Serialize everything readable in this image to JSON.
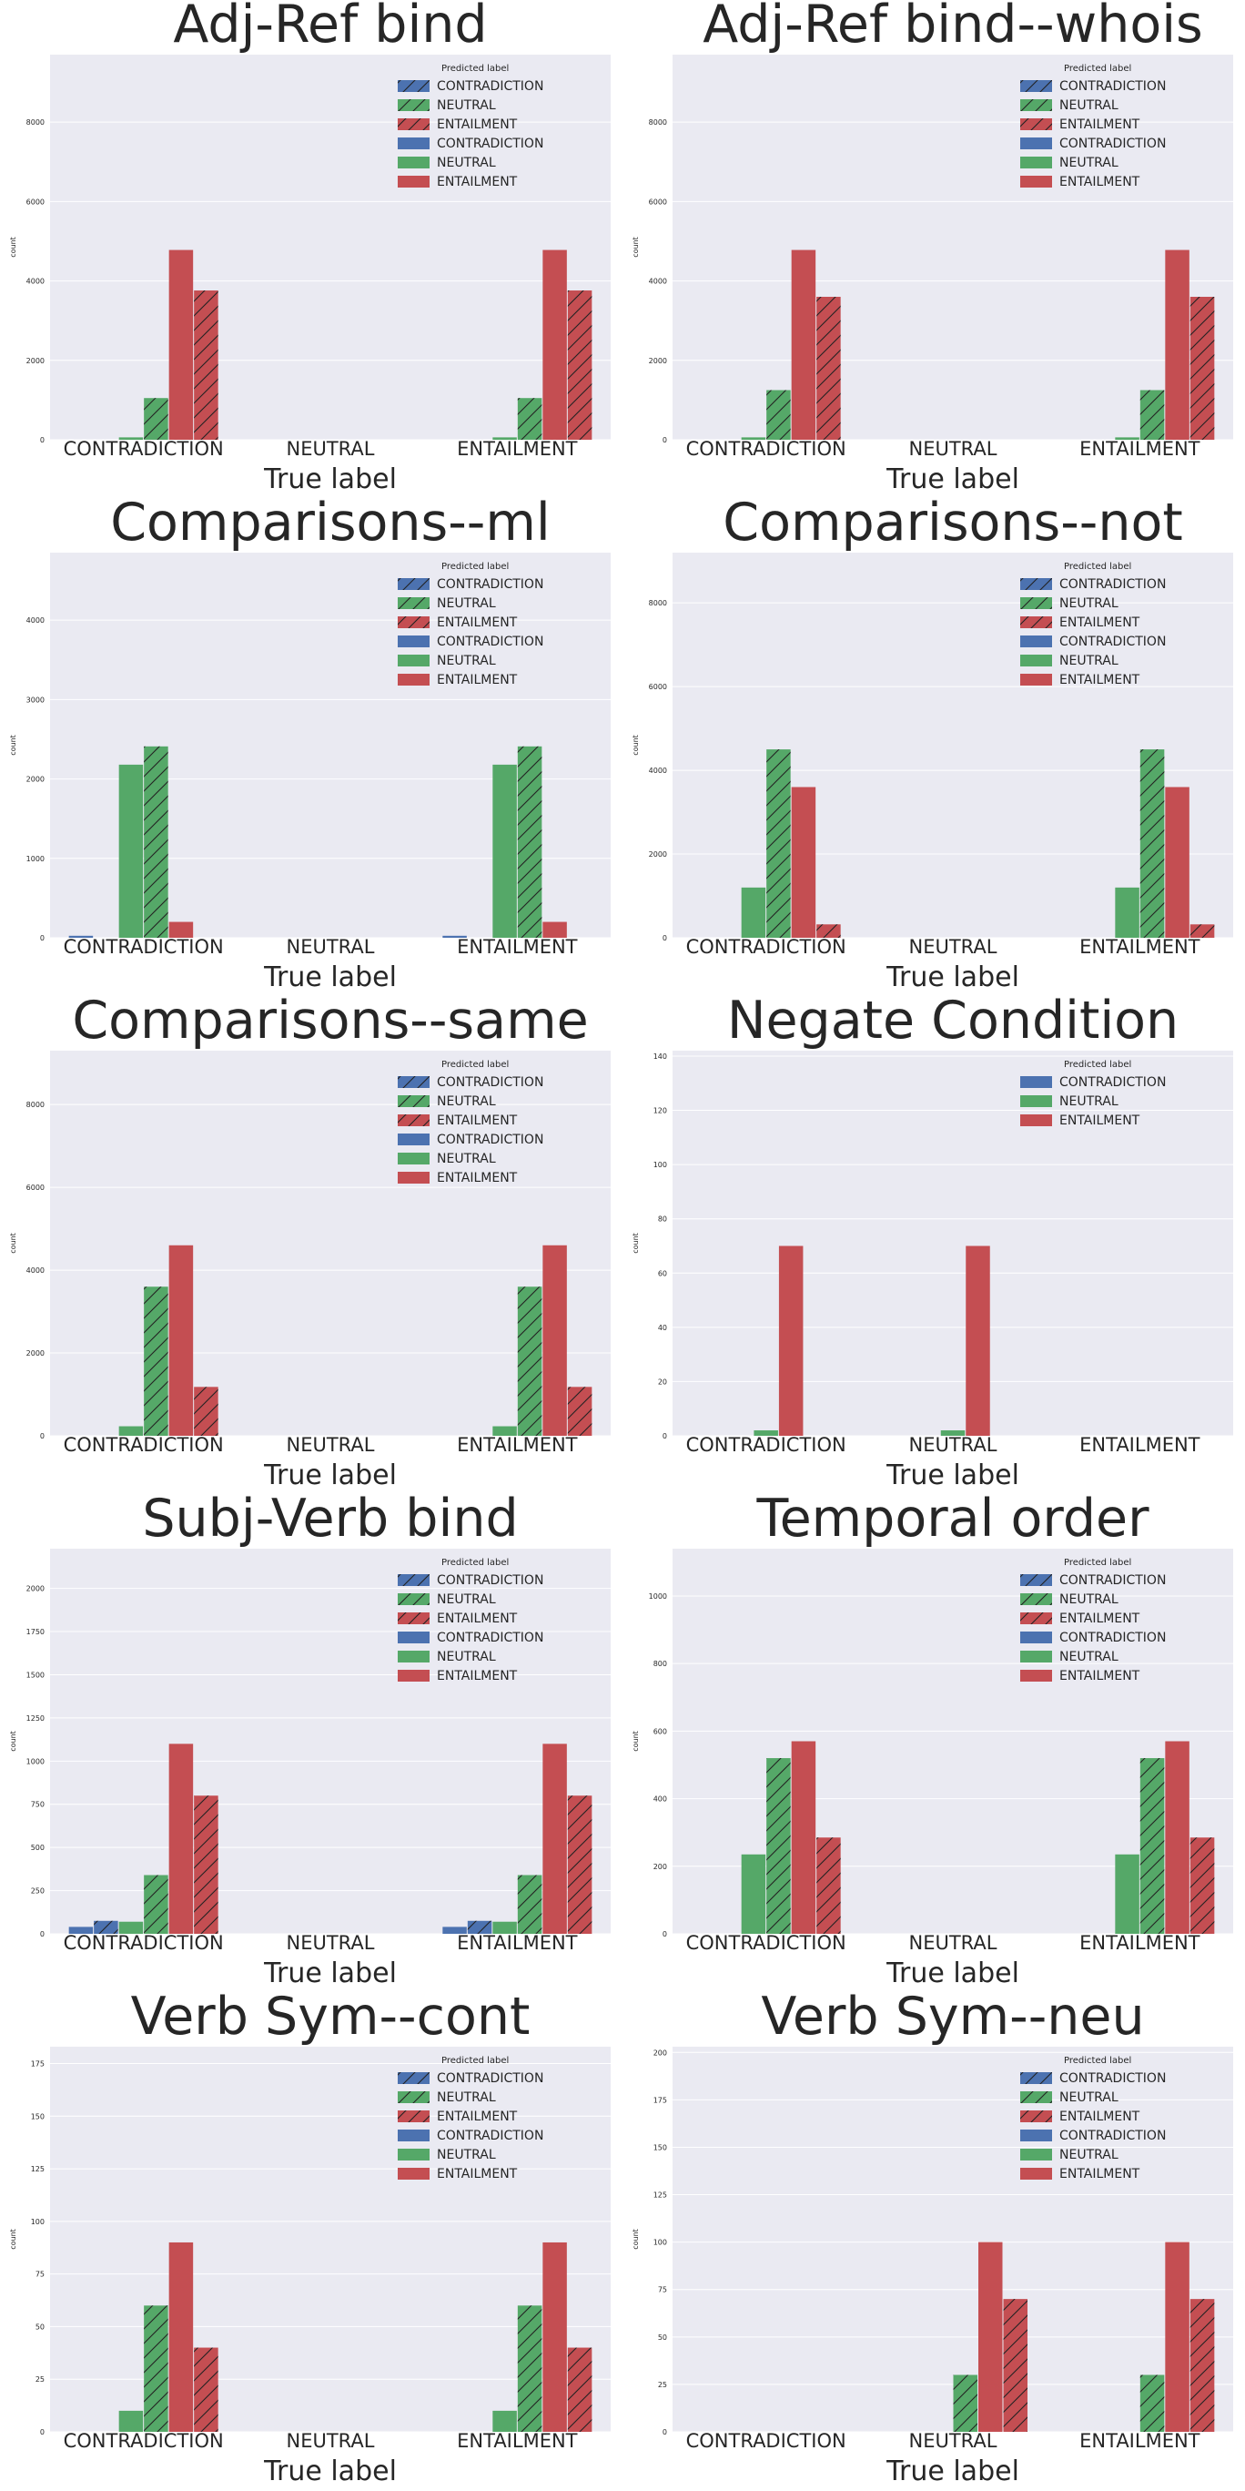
{
  "colors": {
    "background": "#eaeaf2",
    "grid": "#ffffff",
    "CONTRADICTION": "#4c72b0",
    "NEUTRAL": "#55a868",
    "ENTAILMENT": "#c44e52",
    "text": "#262626"
  },
  "chart_data": [
    {
      "type": "bar",
      "title": "Adj-Ref bind",
      "xlabel": "True label",
      "ylabel": "count",
      "categories": [
        "CONTRADICTION",
        "NEUTRAL",
        "ENTAILMENT"
      ],
      "ylim": [
        0,
        9700
      ],
      "yticks": [
        0,
        2000,
        4000,
        6000,
        8000
      ],
      "legend_title": "Predicted label",
      "legend": [
        {
          "label": "CONTRADICTION",
          "hatched": true
        },
        {
          "label": "NEUTRAL",
          "hatched": true
        },
        {
          "label": "ENTAILMENT",
          "hatched": true
        },
        {
          "label": "CONTRADICTION",
          "hatched": false
        },
        {
          "label": "NEUTRAL",
          "hatched": false
        },
        {
          "label": "ENTAILMENT",
          "hatched": false
        }
      ],
      "series": [
        {
          "predicted": "CONTRADICTION",
          "hatched": false,
          "values": [
            0,
            0,
            0
          ]
        },
        {
          "predicted": "CONTRADICTION",
          "hatched": true,
          "values": [
            0,
            0,
            0
          ]
        },
        {
          "predicted": "NEUTRAL",
          "hatched": false,
          "values": [
            60,
            0,
            60
          ]
        },
        {
          "predicted": "NEUTRAL",
          "hatched": true,
          "values": [
            1050,
            0,
            1050
          ]
        },
        {
          "predicted": "ENTAILMENT",
          "hatched": false,
          "values": [
            4780,
            0,
            4780
          ]
        },
        {
          "predicted": "ENTAILMENT",
          "hatched": true,
          "values": [
            3760,
            0,
            3760
          ]
        }
      ]
    },
    {
      "type": "bar",
      "title": "Adj-Ref bind--whois",
      "xlabel": "True label",
      "ylabel": "count",
      "categories": [
        "CONTRADICTION",
        "NEUTRAL",
        "ENTAILMENT"
      ],
      "ylim": [
        0,
        9700
      ],
      "yticks": [
        0,
        2000,
        4000,
        6000,
        8000
      ],
      "legend_title": "Predicted label",
      "legend": [
        {
          "label": "CONTRADICTION",
          "hatched": true
        },
        {
          "label": "NEUTRAL",
          "hatched": true
        },
        {
          "label": "ENTAILMENT",
          "hatched": true
        },
        {
          "label": "CONTRADICTION",
          "hatched": false
        },
        {
          "label": "NEUTRAL",
          "hatched": false
        },
        {
          "label": "ENTAILMENT",
          "hatched": false
        }
      ],
      "series": [
        {
          "predicted": "CONTRADICTION",
          "hatched": false,
          "values": [
            0,
            0,
            0
          ]
        },
        {
          "predicted": "CONTRADICTION",
          "hatched": true,
          "values": [
            0,
            0,
            0
          ]
        },
        {
          "predicted": "NEUTRAL",
          "hatched": false,
          "values": [
            60,
            0,
            60
          ]
        },
        {
          "predicted": "NEUTRAL",
          "hatched": true,
          "values": [
            1250,
            0,
            1250
          ]
        },
        {
          "predicted": "ENTAILMENT",
          "hatched": false,
          "values": [
            4780,
            0,
            4780
          ]
        },
        {
          "predicted": "ENTAILMENT",
          "hatched": true,
          "values": [
            3600,
            0,
            3600
          ]
        }
      ]
    },
    {
      "type": "bar",
      "title": "Comparisons--ml",
      "xlabel": "True label",
      "ylabel": "count",
      "categories": [
        "CONTRADICTION",
        "NEUTRAL",
        "ENTAILMENT"
      ],
      "ylim": [
        0,
        4850
      ],
      "yticks": [
        0,
        1000,
        2000,
        3000,
        4000
      ],
      "legend_title": "Predicted label",
      "legend": [
        {
          "label": "CONTRADICTION",
          "hatched": true
        },
        {
          "label": "NEUTRAL",
          "hatched": true
        },
        {
          "label": "ENTAILMENT",
          "hatched": true
        },
        {
          "label": "CONTRADICTION",
          "hatched": false
        },
        {
          "label": "NEUTRAL",
          "hatched": false
        },
        {
          "label": "ENTAILMENT",
          "hatched": false
        }
      ],
      "series": [
        {
          "predicted": "CONTRADICTION",
          "hatched": false,
          "values": [
            25,
            0,
            25
          ]
        },
        {
          "predicted": "CONTRADICTION",
          "hatched": true,
          "values": [
            0,
            0,
            0
          ]
        },
        {
          "predicted": "NEUTRAL",
          "hatched": false,
          "values": [
            2180,
            0,
            2180
          ]
        },
        {
          "predicted": "NEUTRAL",
          "hatched": true,
          "values": [
            2410,
            0,
            2410
          ]
        },
        {
          "predicted": "ENTAILMENT",
          "hatched": false,
          "values": [
            200,
            0,
            200
          ]
        },
        {
          "predicted": "ENTAILMENT",
          "hatched": true,
          "values": [
            0,
            0,
            0
          ]
        }
      ]
    },
    {
      "type": "bar",
      "title": "Comparisons--not",
      "xlabel": "True label",
      "ylabel": "count",
      "categories": [
        "CONTRADICTION",
        "NEUTRAL",
        "ENTAILMENT"
      ],
      "ylim": [
        0,
        9200
      ],
      "yticks": [
        0,
        2000,
        4000,
        6000,
        8000
      ],
      "legend_title": "Predicted label",
      "legend": [
        {
          "label": "CONTRADICTION",
          "hatched": true
        },
        {
          "label": "NEUTRAL",
          "hatched": true
        },
        {
          "label": "ENTAILMENT",
          "hatched": true
        },
        {
          "label": "CONTRADICTION",
          "hatched": false
        },
        {
          "label": "NEUTRAL",
          "hatched": false
        },
        {
          "label": "ENTAILMENT",
          "hatched": false
        }
      ],
      "series": [
        {
          "predicted": "CONTRADICTION",
          "hatched": false,
          "values": [
            0,
            0,
            0
          ]
        },
        {
          "predicted": "CONTRADICTION",
          "hatched": true,
          "values": [
            0,
            0,
            0
          ]
        },
        {
          "predicted": "NEUTRAL",
          "hatched": false,
          "values": [
            1200,
            0,
            1200
          ]
        },
        {
          "predicted": "NEUTRAL",
          "hatched": true,
          "values": [
            4500,
            0,
            4500
          ]
        },
        {
          "predicted": "ENTAILMENT",
          "hatched": false,
          "values": [
            3600,
            0,
            3600
          ]
        },
        {
          "predicted": "ENTAILMENT",
          "hatched": true,
          "values": [
            320,
            0,
            320
          ]
        }
      ]
    },
    {
      "type": "bar",
      "title": "Comparisons--same",
      "xlabel": "True label",
      "ylabel": "count",
      "categories": [
        "CONTRADICTION",
        "NEUTRAL",
        "ENTAILMENT"
      ],
      "ylim": [
        0,
        9300
      ],
      "yticks": [
        0,
        2000,
        4000,
        6000,
        8000
      ],
      "legend_title": "Predicted label",
      "legend": [
        {
          "label": "CONTRADICTION",
          "hatched": true
        },
        {
          "label": "NEUTRAL",
          "hatched": true
        },
        {
          "label": "ENTAILMENT",
          "hatched": true
        },
        {
          "label": "CONTRADICTION",
          "hatched": false
        },
        {
          "label": "NEUTRAL",
          "hatched": false
        },
        {
          "label": "ENTAILMENT",
          "hatched": false
        }
      ],
      "series": [
        {
          "predicted": "CONTRADICTION",
          "hatched": false,
          "values": [
            0,
            0,
            0
          ]
        },
        {
          "predicted": "CONTRADICTION",
          "hatched": true,
          "values": [
            0,
            0,
            0
          ]
        },
        {
          "predicted": "NEUTRAL",
          "hatched": false,
          "values": [
            230,
            0,
            230
          ]
        },
        {
          "predicted": "NEUTRAL",
          "hatched": true,
          "values": [
            3600,
            0,
            3600
          ]
        },
        {
          "predicted": "ENTAILMENT",
          "hatched": false,
          "values": [
            4600,
            0,
            4600
          ]
        },
        {
          "predicted": "ENTAILMENT",
          "hatched": true,
          "values": [
            1180,
            0,
            1180
          ]
        }
      ]
    },
    {
      "type": "bar",
      "title": "Negate Condition",
      "xlabel": "True label",
      "ylabel": "count",
      "categories": [
        "CONTRADICTION",
        "NEUTRAL",
        "ENTAILMENT"
      ],
      "ylim": [
        0,
        142
      ],
      "yticks": [
        0,
        20,
        40,
        60,
        80,
        100,
        120,
        140
      ],
      "legend_title": "Predicted label",
      "legend": [
        {
          "label": "CONTRADICTION",
          "hatched": false
        },
        {
          "label": "NEUTRAL",
          "hatched": false
        },
        {
          "label": "ENTAILMENT",
          "hatched": false
        }
      ],
      "series": [
        {
          "predicted": "CONTRADICTION",
          "hatched": false,
          "values": [
            0,
            0,
            0
          ]
        },
        {
          "predicted": "NEUTRAL",
          "hatched": false,
          "values": [
            2,
            2,
            0
          ]
        },
        {
          "predicted": "ENTAILMENT",
          "hatched": false,
          "values": [
            70,
            70,
            0
          ]
        }
      ]
    },
    {
      "type": "bar",
      "title": "Subj-Verb bind",
      "xlabel": "True label",
      "ylabel": "count",
      "categories": [
        "CONTRADICTION",
        "NEUTRAL",
        "ENTAILMENT"
      ],
      "ylim": [
        0,
        2230
      ],
      "yticks": [
        0,
        250,
        500,
        750,
        1000,
        1250,
        1500,
        1750,
        2000
      ],
      "legend_title": "Predicted label",
      "legend": [
        {
          "label": "CONTRADICTION",
          "hatched": true
        },
        {
          "label": "NEUTRAL",
          "hatched": true
        },
        {
          "label": "ENTAILMENT",
          "hatched": true
        },
        {
          "label": "CONTRADICTION",
          "hatched": false
        },
        {
          "label": "NEUTRAL",
          "hatched": false
        },
        {
          "label": "ENTAILMENT",
          "hatched": false
        }
      ],
      "series": [
        {
          "predicted": "CONTRADICTION",
          "hatched": false,
          "values": [
            40,
            0,
            40
          ]
        },
        {
          "predicted": "CONTRADICTION",
          "hatched": true,
          "values": [
            75,
            0,
            75
          ]
        },
        {
          "predicted": "NEUTRAL",
          "hatched": false,
          "values": [
            70,
            0,
            70
          ]
        },
        {
          "predicted": "NEUTRAL",
          "hatched": true,
          "values": [
            340,
            0,
            340
          ]
        },
        {
          "predicted": "ENTAILMENT",
          "hatched": false,
          "values": [
            1100,
            0,
            1100
          ]
        },
        {
          "predicted": "ENTAILMENT",
          "hatched": true,
          "values": [
            800,
            0,
            800
          ]
        }
      ]
    },
    {
      "type": "bar",
      "title": "Temporal order",
      "xlabel": "True label",
      "ylabel": "count",
      "categories": [
        "CONTRADICTION",
        "NEUTRAL",
        "ENTAILMENT"
      ],
      "ylim": [
        0,
        1140
      ],
      "yticks": [
        0,
        200,
        400,
        600,
        800,
        1000
      ],
      "legend_title": "Predicted label",
      "legend": [
        {
          "label": "CONTRADICTION",
          "hatched": true
        },
        {
          "label": "NEUTRAL",
          "hatched": true
        },
        {
          "label": "ENTAILMENT",
          "hatched": true
        },
        {
          "label": "CONTRADICTION",
          "hatched": false
        },
        {
          "label": "NEUTRAL",
          "hatched": false
        },
        {
          "label": "ENTAILMENT",
          "hatched": false
        }
      ],
      "series": [
        {
          "predicted": "CONTRADICTION",
          "hatched": false,
          "values": [
            0,
            0,
            0
          ]
        },
        {
          "predicted": "CONTRADICTION",
          "hatched": true,
          "values": [
            0,
            0,
            0
          ]
        },
        {
          "predicted": "NEUTRAL",
          "hatched": false,
          "values": [
            235,
            0,
            235
          ]
        },
        {
          "predicted": "NEUTRAL",
          "hatched": true,
          "values": [
            520,
            0,
            520
          ]
        },
        {
          "predicted": "ENTAILMENT",
          "hatched": false,
          "values": [
            570,
            0,
            570
          ]
        },
        {
          "predicted": "ENTAILMENT",
          "hatched": true,
          "values": [
            285,
            0,
            285
          ]
        }
      ]
    },
    {
      "type": "bar",
      "title": "Verb Sym--cont",
      "xlabel": "True label",
      "ylabel": "count",
      "categories": [
        "CONTRADICTION",
        "NEUTRAL",
        "ENTAILMENT"
      ],
      "ylim": [
        0,
        183
      ],
      "yticks": [
        0,
        25,
        50,
        75,
        100,
        125,
        150,
        175
      ],
      "legend_title": "Predicted label",
      "legend": [
        {
          "label": "CONTRADICTION",
          "hatched": true
        },
        {
          "label": "NEUTRAL",
          "hatched": true
        },
        {
          "label": "ENTAILMENT",
          "hatched": true
        },
        {
          "label": "CONTRADICTION",
          "hatched": false
        },
        {
          "label": "NEUTRAL",
          "hatched": false
        },
        {
          "label": "ENTAILMENT",
          "hatched": false
        }
      ],
      "series": [
        {
          "predicted": "CONTRADICTION",
          "hatched": false,
          "values": [
            0,
            0,
            0
          ]
        },
        {
          "predicted": "CONTRADICTION",
          "hatched": true,
          "values": [
            0,
            0,
            0
          ]
        },
        {
          "predicted": "NEUTRAL",
          "hatched": false,
          "values": [
            10,
            0,
            10
          ]
        },
        {
          "predicted": "NEUTRAL",
          "hatched": true,
          "values": [
            60,
            0,
            60
          ]
        },
        {
          "predicted": "ENTAILMENT",
          "hatched": false,
          "values": [
            90,
            0,
            90
          ]
        },
        {
          "predicted": "ENTAILMENT",
          "hatched": true,
          "values": [
            40,
            0,
            40
          ]
        }
      ]
    },
    {
      "type": "bar",
      "title": "Verb Sym--neu",
      "xlabel": "True label",
      "ylabel": "count",
      "categories": [
        "CONTRADICTION",
        "NEUTRAL",
        "ENTAILMENT"
      ],
      "ylim": [
        0,
        203
      ],
      "yticks": [
        0,
        25,
        50,
        75,
        100,
        125,
        150,
        175,
        200
      ],
      "legend_title": "Predicted label",
      "legend": [
        {
          "label": "CONTRADICTION",
          "hatched": true
        },
        {
          "label": "NEUTRAL",
          "hatched": true
        },
        {
          "label": "ENTAILMENT",
          "hatched": true
        },
        {
          "label": "CONTRADICTION",
          "hatched": false
        },
        {
          "label": "NEUTRAL",
          "hatched": false
        },
        {
          "label": "ENTAILMENT",
          "hatched": false
        }
      ],
      "series": [
        {
          "predicted": "CONTRADICTION",
          "hatched": false,
          "values": [
            0,
            0,
            0
          ]
        },
        {
          "predicted": "CONTRADICTION",
          "hatched": true,
          "values": [
            0,
            0,
            0
          ]
        },
        {
          "predicted": "NEUTRAL",
          "hatched": false,
          "values": [
            0,
            0,
            0
          ]
        },
        {
          "predicted": "NEUTRAL",
          "hatched": true,
          "values": [
            0,
            30,
            30
          ]
        },
        {
          "predicted": "ENTAILMENT",
          "hatched": false,
          "values": [
            0,
            100,
            100
          ]
        },
        {
          "predicted": "ENTAILMENT",
          "hatched": true,
          "values": [
            0,
            70,
            70
          ]
        }
      ]
    }
  ]
}
